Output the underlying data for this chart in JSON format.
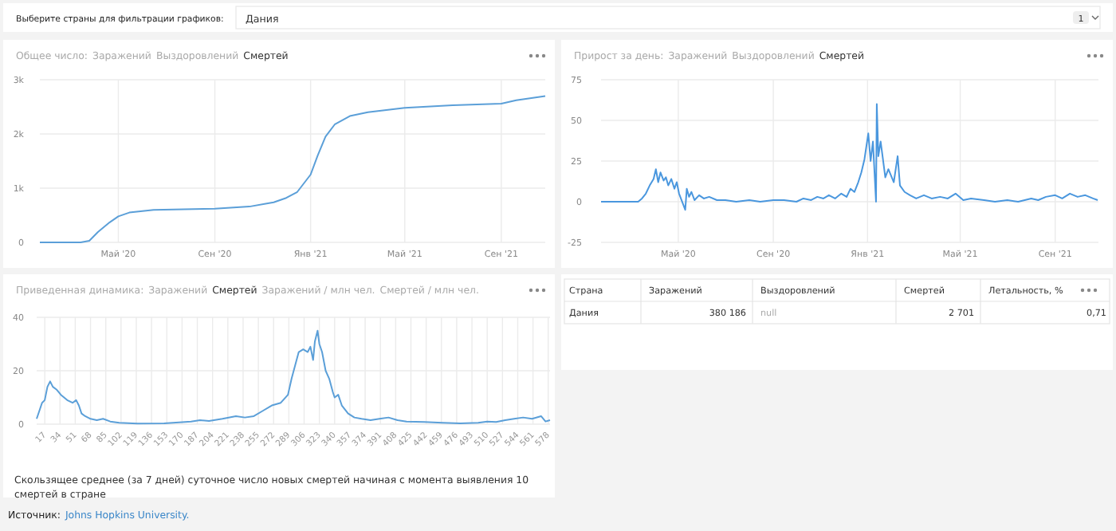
{
  "chart_data": [
    {
      "type": "other",
      "title": "Выберите страны для фильтрации графиков:",
      "annotations": [
        "Дания",
        "1"
      ]
    },
    {
      "type": "line",
      "title": "Общее число:",
      "annotations": [
        "Заражений",
        "Выздоровлений",
        "Смертей"
      ],
      "grid": true,
      "xlim": [
        "2020-01-22",
        "2021-10-27"
      ],
      "ylim": [
        0,
        3000
      ],
      "xticks": [
        {
          "value": "2020-05-01",
          "label": "Май '20"
        },
        {
          "value": "2020-09-01",
          "label": "Сен '20"
        },
        {
          "value": "2021-01-01",
          "label": "Янв '21"
        },
        {
          "value": "2021-05-01",
          "label": "Май '21"
        },
        {
          "value": "2021-09-01",
          "label": "Сен '21"
        }
      ],
      "yticks": [
        0,
        {
          "value": 1000,
          "label": "1k"
        },
        {
          "value": 2000,
          "label": "2k"
        },
        {
          "value": 3000,
          "label": "3k"
        }
      ],
      "x": [
        "2020-01-22",
        "2020-03-14",
        "2020-03-25",
        "2020-04-05",
        "2020-04-20",
        "2020-05-01",
        "2020-05-15",
        "2020-06-15",
        "2020-09-01",
        "2020-10-15",
        "2020-11-15",
        "2020-12-01",
        "2020-12-15",
        "2021-01-01",
        "2021-01-10",
        "2021-01-20",
        "2021-02-01",
        "2021-02-20",
        "2021-03-15",
        "2021-05-01",
        "2021-07-01",
        "2021-09-01",
        "2021-09-20",
        "2021-10-27"
      ],
      "series": [
        {
          "color": "#5b9fd8",
          "values": [
            0,
            0,
            30,
            190,
            370,
            480,
            550,
            600,
            620,
            660,
            740,
            820,
            930,
            1250,
            1600,
            1950,
            2180,
            2330,
            2400,
            2480,
            2530,
            2560,
            2620,
            2700
          ]
        }
      ]
    },
    {
      "type": "line",
      "title": "Прирост за день:",
      "annotations": [
        "Заражений",
        "Выздоровлений",
        "Смертей"
      ],
      "grid": true,
      "xlim": [
        "2020-01-22",
        "2021-10-27"
      ],
      "ylim": [
        -25,
        75
      ],
      "xticks": [
        {
          "value": "2020-05-01",
          "label": "Май '20"
        },
        {
          "value": "2020-09-01",
          "label": "Сен '20"
        },
        {
          "value": "2021-01-01",
          "label": "Янв '21"
        },
        {
          "value": "2021-05-01",
          "label": "Май '21"
        },
        {
          "value": "2021-09-01",
          "label": "Сен '21"
        }
      ],
      "yticks": [
        -25,
        0,
        25,
        50,
        75
      ],
      "x": [
        "2020-01-22",
        "2020-03-10",
        "2020-03-15",
        "2020-03-20",
        "2020-03-25",
        "2020-03-30",
        "2020-04-02",
        "2020-04-05",
        "2020-04-08",
        "2020-04-12",
        "2020-04-15",
        "2020-04-18",
        "2020-04-22",
        "2020-04-26",
        "2020-04-29",
        "2020-05-02",
        "2020-05-10",
        "2020-05-12",
        "2020-05-15",
        "2020-05-18",
        "2020-05-22",
        "2020-05-28",
        "2020-06-03",
        "2020-06-10",
        "2020-06-20",
        "2020-07-01",
        "2020-07-15",
        "2020-08-01",
        "2020-08-15",
        "2020-09-01",
        "2020-09-15",
        "2020-10-01",
        "2020-10-10",
        "2020-10-20",
        "2020-10-28",
        "2020-11-05",
        "2020-11-12",
        "2020-11-20",
        "2020-11-28",
        "2020-12-05",
        "2020-12-10",
        "2020-12-15",
        "2020-12-20",
        "2020-12-24",
        "2020-12-28",
        "2021-01-02",
        "2021-01-05",
        "2021-01-08",
        "2021-01-12",
        "2021-01-13",
        "2021-01-15",
        "2021-01-18",
        "2021-01-21",
        "2021-01-24",
        "2021-01-28",
        "2021-02-04",
        "2021-02-09",
        "2021-02-12",
        "2021-02-18",
        "2021-02-25",
        "2021-03-05",
        "2021-03-15",
        "2021-03-25",
        "2021-04-05",
        "2021-04-15",
        "2021-04-25",
        "2021-05-05",
        "2021-05-15",
        "2021-06-01",
        "2021-06-15",
        "2021-07-01",
        "2021-07-15",
        "2021-08-01",
        "2021-08-10",
        "2021-08-20",
        "2021-09-01",
        "2021-09-10",
        "2021-09-20",
        "2021-09-30",
        "2021-10-10",
        "2021-10-20",
        "2021-10-26"
      ],
      "series": [
        {
          "color": "#4a97de",
          "values": [
            0,
            0,
            2,
            5,
            10,
            14,
            20,
            12,
            18,
            13,
            15,
            10,
            14,
            8,
            12,
            5,
            -5,
            8,
            3,
            6,
            1,
            4,
            2,
            3,
            1,
            1,
            0,
            1,
            0,
            1,
            1,
            0,
            2,
            1,
            3,
            2,
            4,
            2,
            5,
            3,
            8,
            6,
            12,
            18,
            26,
            42,
            25,
            37,
            0,
            60,
            28,
            37,
            26,
            15,
            20,
            12,
            28,
            10,
            6,
            4,
            2,
            4,
            2,
            3,
            2,
            5,
            1,
            2,
            1,
            0,
            1,
            0,
            2,
            1,
            3,
            4,
            2,
            5,
            3,
            4,
            2,
            1
          ]
        }
      ]
    },
    {
      "type": "line",
      "title": "Приведенная динамика:",
      "annotations": [
        "Заражений",
        "Смертей",
        "Заражений / млн чел.",
        "Смертей / млн чел."
      ],
      "grid": true,
      "subtitle": "Скользящее среднее (за 7 дней) суточное число новых смертей начиная с момента выявления 10 смертей в стране",
      "xlim": [
        8,
        580
      ],
      "ylim": [
        0,
        40
      ],
      "xticks": [
        17,
        34,
        51,
        68,
        85,
        102,
        119,
        136,
        153,
        170,
        187,
        204,
        221,
        238,
        255,
        272,
        289,
        306,
        323,
        340,
        357,
        374,
        391,
        408,
        425,
        442,
        459,
        476,
        493,
        510,
        527,
        544,
        561,
        578
      ],
      "yticks": [
        0,
        20,
        40
      ],
      "x": [
        8,
        11,
        14,
        17,
        20,
        23,
        26,
        30,
        35,
        42,
        48,
        52,
        55,
        58,
        62,
        68,
        75,
        82,
        90,
        100,
        120,
        150,
        180,
        190,
        200,
        215,
        230,
        240,
        250,
        260,
        270,
        280,
        288,
        292,
        296,
        300,
        305,
        310,
        313,
        316,
        318,
        321,
        323,
        326,
        330,
        334,
        338,
        340,
        344,
        348,
        355,
        362,
        370,
        380,
        390,
        400,
        410,
        420,
        440,
        460,
        480,
        500,
        510,
        520,
        530,
        540,
        550,
        560,
        570,
        575,
        580
      ],
      "series": [
        {
          "color": "#5b9fd8",
          "values": [
            2,
            5,
            8,
            9,
            14,
            16,
            14,
            13,
            11,
            9,
            8,
            9,
            7,
            4,
            3,
            2,
            1.5,
            2,
            1,
            0.5,
            0.2,
            0.3,
            1,
            1.5,
            1.2,
            2,
            3,
            2.5,
            3,
            5,
            7,
            8,
            11,
            17,
            22,
            27,
            28,
            27,
            29,
            24,
            31,
            35,
            30,
            27,
            20,
            17,
            12,
            10,
            11,
            7,
            4,
            2.5,
            2,
            1.5,
            2,
            2.5,
            1.5,
            1,
            0.8,
            0.5,
            0.3,
            0.5,
            1,
            0.8,
            1.5,
            2,
            2.5,
            2,
            3,
            1,
            1.5
          ]
        }
      ]
    },
    {
      "type": "other",
      "categories": [
        "Страна",
        "Заражений",
        "Выздоровлений",
        "Смертей",
        "Летальность, %"
      ],
      "annotations": [
        "Дания",
        "380 186",
        "null",
        "2 701",
        "0,71"
      ]
    },
    {
      "type": "other",
      "annotations": [
        "Источник:",
        "Johns Hopkins University."
      ]
    }
  ]
}
